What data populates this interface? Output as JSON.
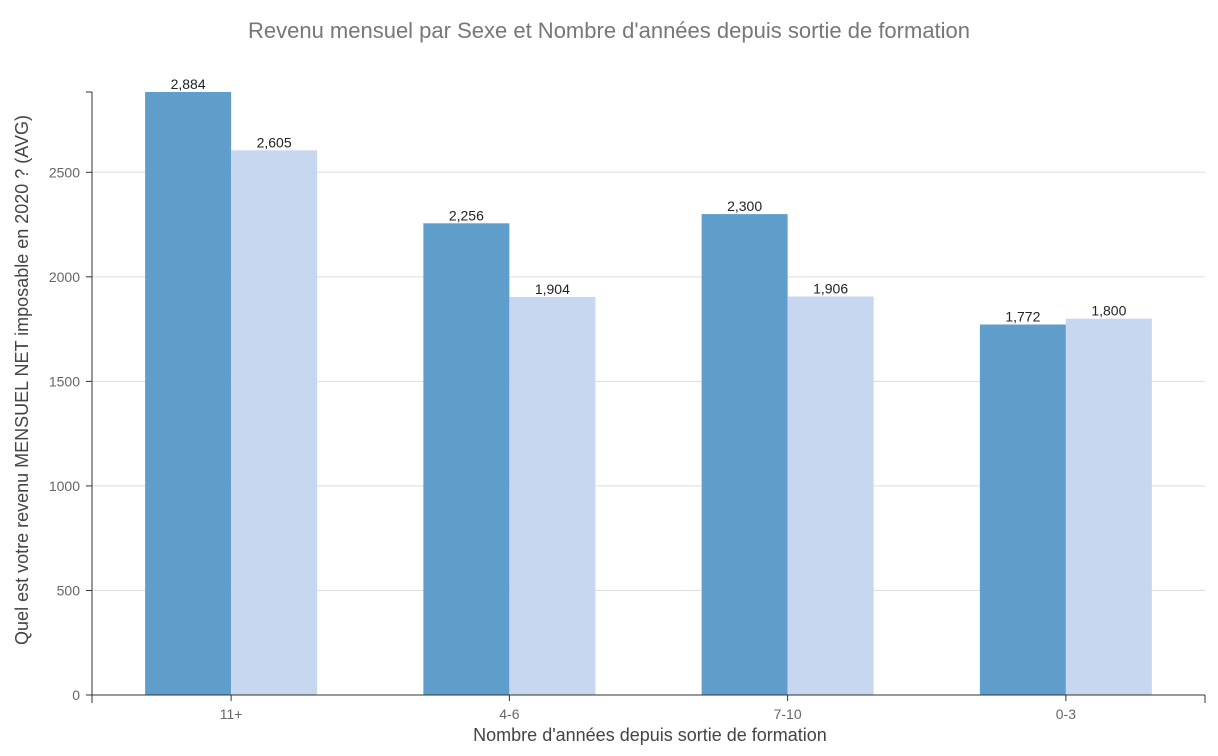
{
  "chart_data": {
    "type": "bar",
    "title": "Revenu mensuel par Sexe et Nombre d'années depuis sortie de formation",
    "xlabel": "Nombre d'années depuis sortie de formation",
    "ylabel": "Quel est votre revenu MENSUEL NET imposable en 2020 ? (AVG)",
    "categories": [
      "11+",
      "4-6",
      "7-10",
      "0-3"
    ],
    "series": [
      {
        "values": [
          2884,
          2256,
          2300,
          1772
        ],
        "labels": [
          "2,884",
          "2,256",
          "2,300",
          "1,772"
        ],
        "color": "#5f9dca"
      },
      {
        "values": [
          2605,
          1904,
          1906,
          1800
        ],
        "labels": [
          "2,605",
          "1,904",
          "1,906",
          "1,800"
        ],
        "color": "#c6d7ef"
      }
    ],
    "ylim": [
      0,
      2884
    ],
    "yticks": [
      0,
      500,
      1000,
      1500,
      2000,
      2500
    ],
    "grid": true,
    "legend": "none"
  }
}
